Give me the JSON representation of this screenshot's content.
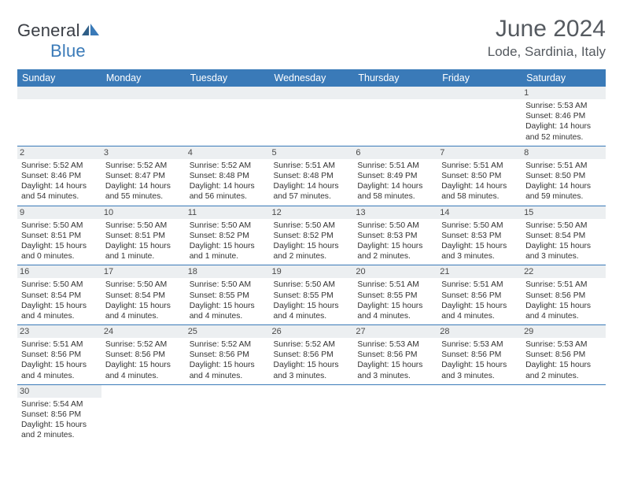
{
  "logo": {
    "word1": "General",
    "word2": "Blue"
  },
  "title": "June 2024",
  "location": "Lode, Sardinia, Italy",
  "colors": {
    "header_bg": "#3a7ab8",
    "header_text": "#ffffff",
    "daynum_bg": "#eceff1",
    "border": "#3a7ab8",
    "title_color": "#555a60"
  },
  "dayNames": [
    "Sunday",
    "Monday",
    "Tuesday",
    "Wednesday",
    "Thursday",
    "Friday",
    "Saturday"
  ],
  "firstWeekday": 6,
  "daysInMonth": 30,
  "days": {
    "1": {
      "sunrise": "Sunrise: 5:53 AM",
      "sunset": "Sunset: 8:46 PM",
      "day1": "Daylight: 14 hours",
      "day2": "and 52 minutes."
    },
    "2": {
      "sunrise": "Sunrise: 5:52 AM",
      "sunset": "Sunset: 8:46 PM",
      "day1": "Daylight: 14 hours",
      "day2": "and 54 minutes."
    },
    "3": {
      "sunrise": "Sunrise: 5:52 AM",
      "sunset": "Sunset: 8:47 PM",
      "day1": "Daylight: 14 hours",
      "day2": "and 55 minutes."
    },
    "4": {
      "sunrise": "Sunrise: 5:52 AM",
      "sunset": "Sunset: 8:48 PM",
      "day1": "Daylight: 14 hours",
      "day2": "and 56 minutes."
    },
    "5": {
      "sunrise": "Sunrise: 5:51 AM",
      "sunset": "Sunset: 8:48 PM",
      "day1": "Daylight: 14 hours",
      "day2": "and 57 minutes."
    },
    "6": {
      "sunrise": "Sunrise: 5:51 AM",
      "sunset": "Sunset: 8:49 PM",
      "day1": "Daylight: 14 hours",
      "day2": "and 58 minutes."
    },
    "7": {
      "sunrise": "Sunrise: 5:51 AM",
      "sunset": "Sunset: 8:50 PM",
      "day1": "Daylight: 14 hours",
      "day2": "and 58 minutes."
    },
    "8": {
      "sunrise": "Sunrise: 5:51 AM",
      "sunset": "Sunset: 8:50 PM",
      "day1": "Daylight: 14 hours",
      "day2": "and 59 minutes."
    },
    "9": {
      "sunrise": "Sunrise: 5:50 AM",
      "sunset": "Sunset: 8:51 PM",
      "day1": "Daylight: 15 hours",
      "day2": "and 0 minutes."
    },
    "10": {
      "sunrise": "Sunrise: 5:50 AM",
      "sunset": "Sunset: 8:51 PM",
      "day1": "Daylight: 15 hours",
      "day2": "and 1 minute."
    },
    "11": {
      "sunrise": "Sunrise: 5:50 AM",
      "sunset": "Sunset: 8:52 PM",
      "day1": "Daylight: 15 hours",
      "day2": "and 1 minute."
    },
    "12": {
      "sunrise": "Sunrise: 5:50 AM",
      "sunset": "Sunset: 8:52 PM",
      "day1": "Daylight: 15 hours",
      "day2": "and 2 minutes."
    },
    "13": {
      "sunrise": "Sunrise: 5:50 AM",
      "sunset": "Sunset: 8:53 PM",
      "day1": "Daylight: 15 hours",
      "day2": "and 2 minutes."
    },
    "14": {
      "sunrise": "Sunrise: 5:50 AM",
      "sunset": "Sunset: 8:53 PM",
      "day1": "Daylight: 15 hours",
      "day2": "and 3 minutes."
    },
    "15": {
      "sunrise": "Sunrise: 5:50 AM",
      "sunset": "Sunset: 8:54 PM",
      "day1": "Daylight: 15 hours",
      "day2": "and 3 minutes."
    },
    "16": {
      "sunrise": "Sunrise: 5:50 AM",
      "sunset": "Sunset: 8:54 PM",
      "day1": "Daylight: 15 hours",
      "day2": "and 4 minutes."
    },
    "17": {
      "sunrise": "Sunrise: 5:50 AM",
      "sunset": "Sunset: 8:54 PM",
      "day1": "Daylight: 15 hours",
      "day2": "and 4 minutes."
    },
    "18": {
      "sunrise": "Sunrise: 5:50 AM",
      "sunset": "Sunset: 8:55 PM",
      "day1": "Daylight: 15 hours",
      "day2": "and 4 minutes."
    },
    "19": {
      "sunrise": "Sunrise: 5:50 AM",
      "sunset": "Sunset: 8:55 PM",
      "day1": "Daylight: 15 hours",
      "day2": "and 4 minutes."
    },
    "20": {
      "sunrise": "Sunrise: 5:51 AM",
      "sunset": "Sunset: 8:55 PM",
      "day1": "Daylight: 15 hours",
      "day2": "and 4 minutes."
    },
    "21": {
      "sunrise": "Sunrise: 5:51 AM",
      "sunset": "Sunset: 8:56 PM",
      "day1": "Daylight: 15 hours",
      "day2": "and 4 minutes."
    },
    "22": {
      "sunrise": "Sunrise: 5:51 AM",
      "sunset": "Sunset: 8:56 PM",
      "day1": "Daylight: 15 hours",
      "day2": "and 4 minutes."
    },
    "23": {
      "sunrise": "Sunrise: 5:51 AM",
      "sunset": "Sunset: 8:56 PM",
      "day1": "Daylight: 15 hours",
      "day2": "and 4 minutes."
    },
    "24": {
      "sunrise": "Sunrise: 5:52 AM",
      "sunset": "Sunset: 8:56 PM",
      "day1": "Daylight: 15 hours",
      "day2": "and 4 minutes."
    },
    "25": {
      "sunrise": "Sunrise: 5:52 AM",
      "sunset": "Sunset: 8:56 PM",
      "day1": "Daylight: 15 hours",
      "day2": "and 4 minutes."
    },
    "26": {
      "sunrise": "Sunrise: 5:52 AM",
      "sunset": "Sunset: 8:56 PM",
      "day1": "Daylight: 15 hours",
      "day2": "and 3 minutes."
    },
    "27": {
      "sunrise": "Sunrise: 5:53 AM",
      "sunset": "Sunset: 8:56 PM",
      "day1": "Daylight: 15 hours",
      "day2": "and 3 minutes."
    },
    "28": {
      "sunrise": "Sunrise: 5:53 AM",
      "sunset": "Sunset: 8:56 PM",
      "day1": "Daylight: 15 hours",
      "day2": "and 3 minutes."
    },
    "29": {
      "sunrise": "Sunrise: 5:53 AM",
      "sunset": "Sunset: 8:56 PM",
      "day1": "Daylight: 15 hours",
      "day2": "and 2 minutes."
    },
    "30": {
      "sunrise": "Sunrise: 5:54 AM",
      "sunset": "Sunset: 8:56 PM",
      "day1": "Daylight: 15 hours",
      "day2": "and 2 minutes."
    }
  }
}
